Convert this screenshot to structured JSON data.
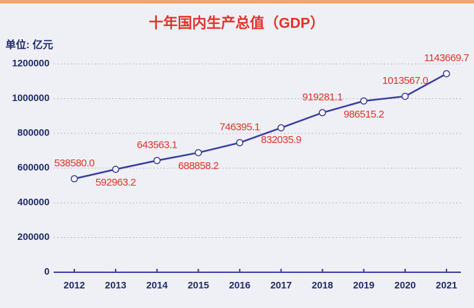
{
  "chart_data": {
    "type": "line",
    "title": "十年国内生产总值（GDP）",
    "unit_label": "单位: 亿元",
    "categories": [
      "2012",
      "2013",
      "2014",
      "2015",
      "2016",
      "2017",
      "2018",
      "2019",
      "2020",
      "2021"
    ],
    "series": [
      {
        "name": "GDP",
        "color": "#3b3f9e",
        "values": [
          538580.0,
          592963.2,
          643563.1,
          688858.2,
          746395.1,
          832035.9,
          919281.1,
          986515.2,
          1013567.0,
          1143669.7
        ],
        "value_labels": [
          "538580.0",
          "592963.2",
          "643563.1",
          "688858.2",
          "746395.1",
          "832035.9",
          "919281.1",
          "986515.2",
          "1013567.0",
          "1143669.7"
        ]
      }
    ],
    "ylim": [
      0,
      1200000
    ],
    "yticks": [
      0,
      200000,
      400000,
      600000,
      800000,
      1000000,
      1200000
    ],
    "grid": true,
    "label_color": "#e2332b"
  }
}
